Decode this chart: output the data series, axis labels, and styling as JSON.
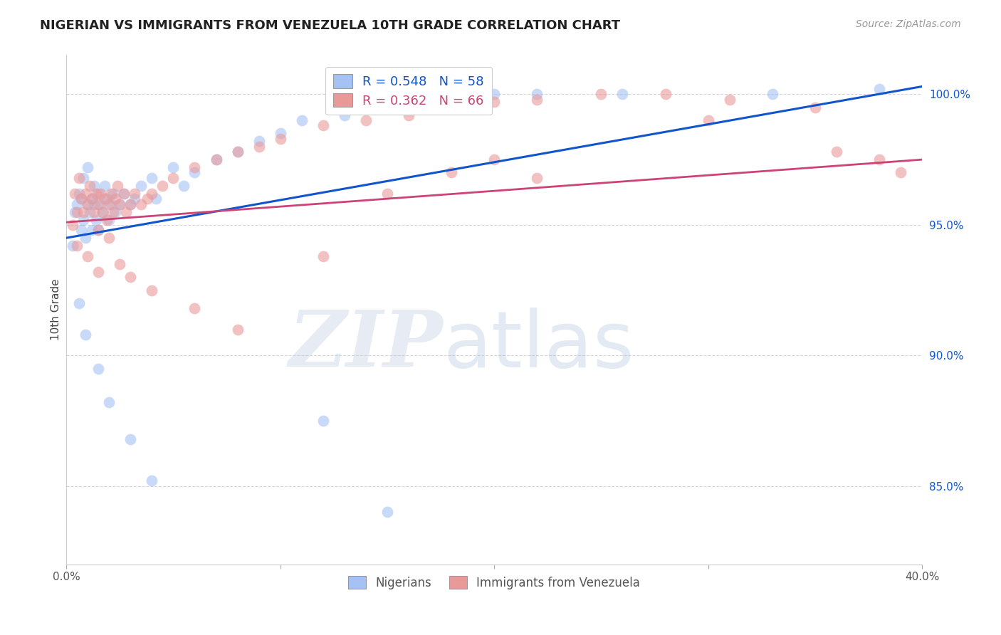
{
  "title": "NIGERIAN VS IMMIGRANTS FROM VENEZUELA 10TH GRADE CORRELATION CHART",
  "source": "Source: ZipAtlas.com",
  "ylabel": "10th Grade",
  "xlim": [
    0.0,
    0.4
  ],
  "ylim": [
    0.82,
    1.015
  ],
  "yticks": [
    0.85,
    0.9,
    0.95,
    1.0
  ],
  "yticklabels": [
    "85.0%",
    "90.0%",
    "95.0%",
    "100.0%"
  ],
  "xticks": [
    0.0,
    0.1,
    0.2,
    0.3,
    0.4
  ],
  "xticklabels": [
    "0.0%",
    "",
    "",
    "",
    "40.0%"
  ],
  "blue_R": 0.548,
  "blue_N": 58,
  "pink_R": 0.362,
  "pink_N": 66,
  "blue_color": "#a4c2f4",
  "pink_color": "#ea9999",
  "blue_line_color": "#1155cc",
  "pink_line_color": "#cc4477",
  "grid_color": "#cccccc",
  "background_color": "#ffffff",
  "blue_line_x0": 0.0,
  "blue_line_y0": 0.945,
  "blue_line_x1": 0.4,
  "blue_line_y1": 1.003,
  "pink_line_x0": 0.0,
  "pink_line_y0": 0.951,
  "pink_line_x1": 0.4,
  "pink_line_y1": 0.975,
  "blue_x": [
    0.003,
    0.004,
    0.005,
    0.006,
    0.007,
    0.007,
    0.008,
    0.008,
    0.009,
    0.01,
    0.01,
    0.011,
    0.012,
    0.012,
    0.013,
    0.013,
    0.014,
    0.015,
    0.015,
    0.016,
    0.017,
    0.018,
    0.019,
    0.02,
    0.021,
    0.022,
    0.023,
    0.025,
    0.027,
    0.03,
    0.032,
    0.035,
    0.04,
    0.042,
    0.05,
    0.055,
    0.06,
    0.07,
    0.08,
    0.09,
    0.1,
    0.11,
    0.13,
    0.15,
    0.17,
    0.2,
    0.22,
    0.26,
    0.33,
    0.38,
    0.006,
    0.009,
    0.015,
    0.02,
    0.03,
    0.04,
    0.12,
    0.15
  ],
  "blue_y": [
    0.942,
    0.955,
    0.958,
    0.962,
    0.948,
    0.96,
    0.952,
    0.968,
    0.945,
    0.958,
    0.972,
    0.955,
    0.96,
    0.948,
    0.965,
    0.958,
    0.952,
    0.962,
    0.948,
    0.958,
    0.955,
    0.965,
    0.96,
    0.952,
    0.958,
    0.962,
    0.955,
    0.958,
    0.962,
    0.958,
    0.96,
    0.965,
    0.968,
    0.96,
    0.972,
    0.965,
    0.97,
    0.975,
    0.978,
    0.982,
    0.985,
    0.99,
    0.992,
    0.995,
    0.998,
    1.0,
    1.0,
    1.0,
    1.0,
    1.002,
    0.92,
    0.908,
    0.895,
    0.882,
    0.868,
    0.852,
    0.875,
    0.84
  ],
  "pink_x": [
    0.003,
    0.004,
    0.005,
    0.006,
    0.007,
    0.008,
    0.009,
    0.01,
    0.011,
    0.012,
    0.013,
    0.014,
    0.015,
    0.015,
    0.016,
    0.017,
    0.018,
    0.019,
    0.02,
    0.021,
    0.022,
    0.023,
    0.024,
    0.025,
    0.027,
    0.028,
    0.03,
    0.032,
    0.035,
    0.038,
    0.04,
    0.045,
    0.05,
    0.06,
    0.07,
    0.08,
    0.09,
    0.1,
    0.12,
    0.14,
    0.16,
    0.18,
    0.2,
    0.22,
    0.25,
    0.28,
    0.31,
    0.35,
    0.38,
    0.005,
    0.01,
    0.015,
    0.02,
    0.025,
    0.03,
    0.04,
    0.06,
    0.08,
    0.12,
    0.15,
    0.18,
    0.2,
    0.22,
    0.3,
    0.36,
    0.39
  ],
  "pink_y": [
    0.95,
    0.962,
    0.955,
    0.968,
    0.96,
    0.955,
    0.962,
    0.958,
    0.965,
    0.96,
    0.955,
    0.962,
    0.958,
    0.948,
    0.962,
    0.955,
    0.96,
    0.952,
    0.958,
    0.962,
    0.955,
    0.96,
    0.965,
    0.958,
    0.962,
    0.955,
    0.958,
    0.962,
    0.958,
    0.96,
    0.962,
    0.965,
    0.968,
    0.972,
    0.975,
    0.978,
    0.98,
    0.983,
    0.988,
    0.99,
    0.992,
    0.995,
    0.997,
    0.998,
    1.0,
    1.0,
    0.998,
    0.995,
    0.975,
    0.942,
    0.938,
    0.932,
    0.945,
    0.935,
    0.93,
    0.925,
    0.918,
    0.91,
    0.938,
    0.962,
    0.97,
    0.975,
    0.968,
    0.99,
    0.978,
    0.97
  ]
}
